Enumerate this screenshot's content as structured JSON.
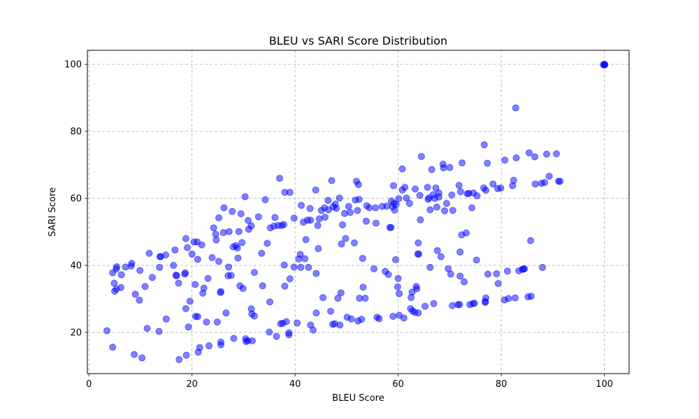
{
  "chart_data": {
    "type": "scatter",
    "title": "BLEU vs SARI Score Distribution",
    "xlabel": "BLEU Score",
    "ylabel": "SARI Score",
    "xlim": [
      -0.3,
      104.8
    ],
    "ylim": [
      7.7,
      104.2
    ],
    "xticks": [
      0,
      20,
      40,
      60,
      80,
      100
    ],
    "yticks": [
      20,
      40,
      60,
      80,
      100
    ],
    "grid": true,
    "marker_color": "#0000ff",
    "series": [
      {
        "points": [
          [
            3.5,
            20.5
          ],
          [
            4.6,
            15.6
          ],
          [
            4.6,
            37.8
          ],
          [
            4.9,
            34.7
          ],
          [
            5.0,
            32.3
          ],
          [
            5.3,
            38.9
          ],
          [
            5.4,
            39.6
          ],
          [
            5.3,
            32.9
          ],
          [
            6.2,
            33.4
          ],
          [
            6.3,
            37.2
          ],
          [
            7.1,
            39.5
          ],
          [
            8.2,
            39.8
          ],
          [
            8.3,
            40.6
          ],
          [
            8.8,
            13.4
          ],
          [
            9.0,
            31.4
          ],
          [
            9.8,
            29.6
          ],
          [
            9.9,
            38.5
          ],
          [
            10.3,
            12.4
          ],
          [
            10.9,
            33.7
          ],
          [
            11.3,
            21.2
          ],
          [
            11.7,
            43.6
          ],
          [
            12.3,
            36.4
          ],
          [
            13.6,
            20.3
          ],
          [
            13.7,
            39.4
          ],
          [
            13.8,
            42.6
          ],
          [
            13.9,
            42.6
          ],
          [
            14.9,
            43.1
          ],
          [
            15.0,
            24.0
          ],
          [
            16.4,
            40.0
          ],
          [
            16.7,
            44.6
          ],
          [
            16.9,
            37.1
          ],
          [
            17.0,
            36.9
          ],
          [
            17.4,
            34.7
          ],
          [
            17.5,
            11.9
          ],
          [
            18.6,
            37.4
          ],
          [
            18.7,
            37.8
          ],
          [
            18.8,
            48.0
          ],
          [
            18.8,
            27.1
          ],
          [
            18.9,
            13.2
          ],
          [
            19.1,
            45.3
          ],
          [
            19.3,
            21.6
          ],
          [
            19.6,
            29.3
          ],
          [
            20.0,
            43.4
          ],
          [
            20.4,
            47.0
          ],
          [
            20.6,
            34.3
          ],
          [
            20.7,
            24.8
          ],
          [
            21.0,
            47.0
          ],
          [
            21.1,
            24.7
          ],
          [
            21.1,
            41.8
          ],
          [
            21.2,
            14.1
          ],
          [
            21.5,
            15.5
          ],
          [
            21.9,
            46.1
          ],
          [
            22.1,
            31.7
          ],
          [
            22.3,
            33.2
          ],
          [
            22.8,
            23.1
          ],
          [
            23.1,
            36.1
          ],
          [
            23.3,
            16.0
          ],
          [
            23.9,
            42.3
          ],
          [
            24.2,
            51.2
          ],
          [
            24.6,
            49.3
          ],
          [
            24.7,
            47.6
          ],
          [
            24.9,
            23.1
          ],
          [
            25.2,
            41.2
          ],
          [
            25.2,
            54.2
          ],
          [
            25.5,
            31.9
          ],
          [
            25.6,
            32.2
          ],
          [
            25.6,
            16.3
          ],
          [
            25.6,
            17.1
          ],
          [
            26.1,
            49.8
          ],
          [
            26.2,
            57.2
          ],
          [
            26.6,
            25.8
          ],
          [
            27.0,
            36.9
          ],
          [
            27.1,
            39.5
          ],
          [
            27.2,
            50.1
          ],
          [
            27.6,
            37.0
          ],
          [
            27.8,
            56.1
          ],
          [
            28.0,
            45.5
          ],
          [
            28.1,
            18.2
          ],
          [
            28.5,
            45.9
          ],
          [
            28.8,
            45.2
          ],
          [
            28.9,
            42.2
          ],
          [
            29.1,
            50.1
          ],
          [
            29.3,
            33.9
          ],
          [
            29.5,
            55.4
          ],
          [
            29.7,
            46.8
          ],
          [
            29.9,
            33.1
          ],
          [
            30.3,
            60.5
          ],
          [
            30.4,
            18.1
          ],
          [
            30.5,
            17.3
          ],
          [
            30.8,
            17.5
          ],
          [
            30.9,
            53.4
          ],
          [
            31.0,
            50.8
          ],
          [
            31.5,
            27.0
          ],
          [
            31.5,
            51.8
          ],
          [
            31.6,
            25.5
          ],
          [
            31.7,
            17.5
          ],
          [
            32.1,
            24.9
          ],
          [
            32.1,
            37.9
          ],
          [
            32.9,
            54.5
          ],
          [
            33.5,
            43.6
          ],
          [
            33.7,
            33.9
          ],
          [
            34.2,
            59.6
          ],
          [
            34.6,
            46.6
          ],
          [
            35.0,
            20.1
          ],
          [
            35.1,
            29.1
          ],
          [
            35.2,
            51.2
          ],
          [
            35.9,
            51.7
          ],
          [
            36.1,
            54.3
          ],
          [
            36.4,
            18.8
          ],
          [
            36.7,
            51.9
          ],
          [
            37.0,
            66.0
          ],
          [
            37.2,
            22.6
          ],
          [
            37.4,
            51.9
          ],
          [
            37.6,
            22.7
          ],
          [
            37.8,
            52.2
          ],
          [
            37.9,
            40.1
          ],
          [
            38.0,
            61.8
          ],
          [
            38.0,
            33.8
          ],
          [
            38.3,
            23.2
          ],
          [
            38.8,
            19.3
          ],
          [
            38.8,
            19.9
          ],
          [
            39.0,
            61.8
          ],
          [
            39.0,
            36.0
          ],
          [
            39.8,
            39.5
          ],
          [
            39.8,
            54.1
          ],
          [
            40.4,
            22.8
          ],
          [
            40.7,
            41.9
          ],
          [
            41.0,
            43.3
          ],
          [
            41.1,
            39.4
          ],
          [
            41.2,
            57.9
          ],
          [
            41.6,
            52.9
          ],
          [
            41.9,
            42.0
          ],
          [
            42.1,
            47.7
          ],
          [
            42.4,
            53.5
          ],
          [
            42.6,
            39.4
          ],
          [
            42.9,
            57.0
          ],
          [
            43.0,
            22.2
          ],
          [
            43.0,
            53.5
          ],
          [
            43.5,
            20.7
          ],
          [
            44.0,
            62.5
          ],
          [
            44.1,
            25.8
          ],
          [
            44.1,
            37.6
          ],
          [
            44.5,
            45.0
          ],
          [
            44.4,
            51.9
          ],
          [
            44.7,
            53.9
          ],
          [
            45.1,
            56.4
          ],
          [
            45.4,
            30.4
          ],
          [
            45.7,
            57.2
          ],
          [
            45.8,
            54.4
          ],
          [
            46.4,
            59.4
          ],
          [
            46.5,
            56.6
          ],
          [
            46.9,
            26.3
          ],
          [
            47.1,
            65.3
          ],
          [
            47.3,
            22.4
          ],
          [
            47.4,
            57.5
          ],
          [
            47.7,
            22.6
          ],
          [
            47.8,
            58.3
          ],
          [
            48.0,
            57.0
          ],
          [
            48.3,
            30.2
          ],
          [
            48.6,
            60.1
          ],
          [
            48.7,
            22.2
          ],
          [
            48.9,
            31.8
          ],
          [
            49.0,
            46.4
          ],
          [
            49.2,
            52.1
          ],
          [
            49.6,
            55.5
          ],
          [
            49.8,
            48.0
          ],
          [
            50.1,
            24.5
          ],
          [
            50.4,
            57.6
          ],
          [
            50.7,
            55.8
          ],
          [
            50.9,
            24.0
          ],
          [
            51.5,
            46.7
          ],
          [
            51.7,
            59.5
          ],
          [
            51.9,
            65.1
          ],
          [
            52.1,
            56.4
          ],
          [
            52.3,
            64.1
          ],
          [
            52.2,
            23.4
          ],
          [
            52.4,
            59.7
          ],
          [
            52.5,
            30.2
          ],
          [
            52.9,
            23.9
          ],
          [
            53.1,
            42.1
          ],
          [
            53.2,
            33.5
          ],
          [
            53.6,
            30.2
          ],
          [
            53.8,
            53.2
          ],
          [
            53.9,
            57.8
          ],
          [
            54.4,
            57.2
          ],
          [
            55.3,
            39.0
          ],
          [
            55.6,
            57.2
          ],
          [
            55.7,
            52.6
          ],
          [
            55.9,
            24.5
          ],
          [
            56.3,
            24.1
          ],
          [
            56.9,
            57.6
          ],
          [
            57.5,
            38.2
          ],
          [
            57.8,
            57.7
          ],
          [
            58.1,
            37.3
          ],
          [
            58.4,
            51.3
          ],
          [
            58.6,
            51.3
          ],
          [
            58.7,
            59.2
          ],
          [
            58.9,
            57.5
          ],
          [
            59.0,
            24.8
          ],
          [
            59.1,
            63.8
          ],
          [
            59.2,
            58.5
          ],
          [
            59.3,
            56.5
          ],
          [
            59.5,
            41.7
          ],
          [
            59.6,
            58.2
          ],
          [
            59.9,
            33.6
          ],
          [
            60.0,
            36.1
          ],
          [
            60.1,
            59.9
          ],
          [
            60.2,
            31.6
          ],
          [
            60.2,
            25.1
          ],
          [
            60.8,
            62.5
          ],
          [
            60.8,
            68.8
          ],
          [
            61.1,
            24.3
          ],
          [
            61.3,
            63.3
          ],
          [
            61.6,
            60.1
          ],
          [
            62.2,
            58.5
          ],
          [
            62.4,
            27.1
          ],
          [
            62.5,
            30.4
          ],
          [
            62.7,
            32.0
          ],
          [
            62.8,
            26.4
          ],
          [
            63.2,
            26.0
          ],
          [
            63.3,
            62.8
          ],
          [
            63.5,
            33.7
          ],
          [
            63.6,
            33.0
          ],
          [
            63.8,
            43.4
          ],
          [
            63.9,
            46.7
          ],
          [
            63.9,
            25.8
          ],
          [
            64.0,
            43.4
          ],
          [
            64.2,
            60.9
          ],
          [
            64.3,
            53.6
          ],
          [
            64.5,
            72.5
          ],
          [
            65.2,
            27.8
          ],
          [
            65.7,
            63.3
          ],
          [
            65.8,
            59.7
          ],
          [
            66.0,
            60.2
          ],
          [
            66.2,
            56.6
          ],
          [
            66.2,
            39.4
          ],
          [
            66.5,
            68.6
          ],
          [
            66.8,
            61.1
          ],
          [
            66.9,
            28.6
          ],
          [
            67.1,
            60.0
          ],
          [
            67.3,
            63.1
          ],
          [
            67.5,
            57.4
          ],
          [
            67.6,
            44.4
          ],
          [
            67.9,
            60.4
          ],
          [
            67.9,
            61.6
          ],
          [
            68.3,
            42.6
          ],
          [
            68.7,
            70.2
          ],
          [
            68.8,
            69.1
          ],
          [
            69.0,
            56.3
          ],
          [
            69.4,
            58.5
          ],
          [
            69.7,
            39.0
          ],
          [
            70.0,
            69.2
          ],
          [
            70.2,
            37.4
          ],
          [
            70.4,
            61.0
          ],
          [
            70.5,
            28.0
          ],
          [
            70.6,
            56.4
          ],
          [
            71.6,
            28.3
          ],
          [
            71.8,
            63.9
          ],
          [
            71.9,
            28.3
          ],
          [
            72.0,
            36.8
          ],
          [
            72.0,
            44.0
          ],
          [
            72.1,
            62.0
          ],
          [
            72.3,
            49.1
          ],
          [
            72.4,
            70.6
          ],
          [
            72.8,
            35.1
          ],
          [
            73.2,
            49.7
          ],
          [
            73.4,
            61.4
          ],
          [
            73.7,
            61.5
          ],
          [
            73.9,
            28.3
          ],
          [
            74.3,
            57.2
          ],
          [
            74.6,
            61.6
          ],
          [
            74.5,
            28.6
          ],
          [
            74.8,
            28.7
          ],
          [
            75.2,
            41.6
          ],
          [
            75.3,
            60.8
          ],
          [
            76.6,
            63.1
          ],
          [
            76.7,
            76.0
          ],
          [
            76.9,
            29.0
          ],
          [
            76.9,
            29.2
          ],
          [
            77.0,
            30.3
          ],
          [
            77.0,
            62.4
          ],
          [
            77.3,
            70.5
          ],
          [
            77.4,
            37.4
          ],
          [
            78.4,
            64.3
          ],
          [
            79.1,
            37.5
          ],
          [
            79.3,
            62.9
          ],
          [
            79.4,
            34.6
          ],
          [
            79.9,
            63.1
          ],
          [
            80.6,
            29.7
          ],
          [
            80.7,
            71.4
          ],
          [
            81.2,
            38.3
          ],
          [
            81.4,
            30.1
          ],
          [
            82.2,
            63.8
          ],
          [
            82.4,
            65.4
          ],
          [
            82.7,
            30.3
          ],
          [
            82.8,
            87.0
          ],
          [
            82.9,
            72.1
          ],
          [
            83.4,
            38.4
          ],
          [
            84.1,
            38.8
          ],
          [
            84.3,
            38.9
          ],
          [
            84.5,
            39.0
          ],
          [
            85.2,
            30.6
          ],
          [
            85.4,
            73.6
          ],
          [
            85.7,
            47.4
          ],
          [
            85.8,
            30.8
          ],
          [
            86.5,
            72.4
          ],
          [
            86.6,
            64.3
          ],
          [
            87.8,
            64.5
          ],
          [
            88.0,
            39.4
          ],
          [
            88.4,
            64.7
          ],
          [
            88.8,
            73.2
          ],
          [
            89.3,
            66.6
          ],
          [
            90.7,
            73.3
          ],
          [
            91.1,
            65.1
          ],
          [
            91.4,
            65.1
          ],
          [
            99.8,
            99.9
          ],
          [
            100.0,
            100.0
          ],
          [
            100.1,
            99.9
          ],
          [
            100.0,
            99.8
          ]
        ]
      }
    ]
  }
}
